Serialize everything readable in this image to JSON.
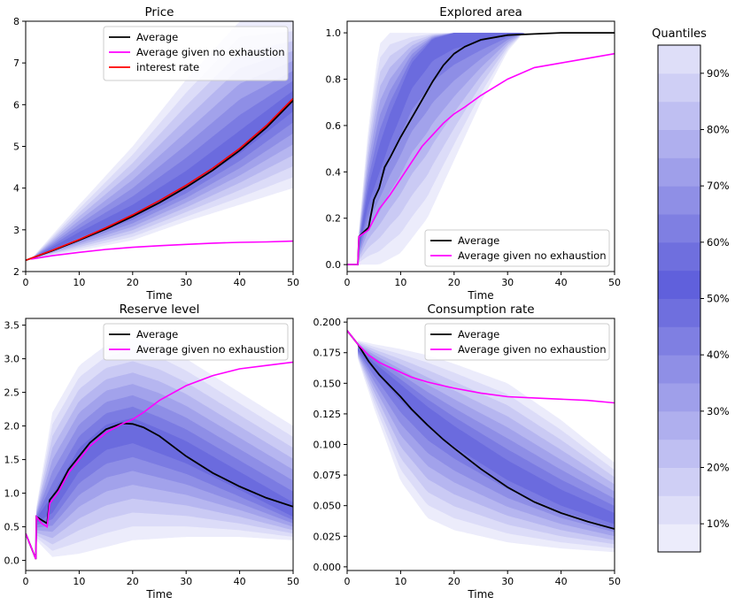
{
  "chart_data": [
    {
      "type": "area",
      "title": "Price",
      "xlabel": "Time",
      "ylabel": "",
      "xlim": [
        0,
        50
      ],
      "ylim": [
        2,
        8
      ],
      "xticks": [
        "0",
        "10",
        "20",
        "30",
        "40",
        "50"
      ],
      "yticks": [
        "2",
        "3",
        "4",
        "5",
        "6",
        "7",
        "8"
      ],
      "legend_position": "top-right",
      "legend": [
        "Average",
        "Average given no exhaustion",
        "interest rate"
      ],
      "band_center": {
        "x": [
          1,
          10,
          20,
          30,
          40,
          50
        ],
        "y": [
          2.3,
          2.85,
          3.4,
          4.1,
          5.0,
          6.1
        ]
      },
      "band_upper": {
        "x": [
          1,
          10,
          20,
          30,
          40,
          50
        ],
        "y": [
          2.3,
          3.6,
          5.0,
          6.6,
          8.0,
          8.0
        ]
      },
      "band_lower": {
        "x": [
          1,
          10,
          20,
          30,
          40,
          50
        ],
        "y": [
          2.3,
          2.5,
          2.75,
          3.2,
          3.6,
          4.0
        ]
      },
      "series": [
        {
          "name": "Average",
          "color": "#000000",
          "x": [
            0,
            5,
            10,
            15,
            20,
            25,
            30,
            35,
            40,
            45,
            50
          ],
          "y": [
            2.27,
            2.5,
            2.75,
            3.02,
            3.32,
            3.65,
            4.02,
            4.43,
            4.9,
            5.45,
            6.1
          ]
        },
        {
          "name": "Average given no exhaustion",
          "color": "#ff00ff",
          "x": [
            1,
            5,
            10,
            15,
            20,
            25,
            30,
            35,
            40,
            45,
            50
          ],
          "y": [
            2.3,
            2.38,
            2.46,
            2.53,
            2.58,
            2.62,
            2.65,
            2.68,
            2.7,
            2.71,
            2.73
          ]
        },
        {
          "name": "interest rate",
          "color": "#ff0000",
          "x": [
            0,
            5,
            10,
            15,
            20,
            25,
            30,
            35,
            40,
            45,
            50
          ],
          "y": [
            2.27,
            2.51,
            2.77,
            3.05,
            3.36,
            3.7,
            4.07,
            4.48,
            4.95,
            5.5,
            6.15
          ]
        }
      ]
    },
    {
      "type": "area",
      "title": "Explored area",
      "xlabel": "Time",
      "ylabel": "",
      "xlim": [
        0,
        50
      ],
      "ylim": [
        -0.03,
        1.05
      ],
      "xticks": [
        "0",
        "10",
        "20",
        "30",
        "40",
        "50"
      ],
      "yticks": [
        "0.0",
        "0.2",
        "0.4",
        "0.6",
        "0.8",
        "1.0"
      ],
      "legend_position": "bottom-right",
      "legend": [
        "Average",
        "Average given no exhaustion"
      ],
      "band_center": {
        "x": [
          2,
          4,
          8,
          12,
          16,
          20,
          25,
          28
        ],
        "y": [
          0.05,
          0.3,
          0.6,
          0.85,
          0.97,
          1.0,
          1.0,
          1.0
        ]
      },
      "band_upper": {
        "x": [
          2,
          4,
          6,
          8,
          10,
          50
        ],
        "y": [
          0.1,
          0.6,
          0.95,
          1.0,
          1.0,
          1.0
        ]
      },
      "band_lower": {
        "x": [
          2,
          6,
          10,
          15,
          20,
          25,
          30,
          33
        ],
        "y": [
          0.0,
          0.0,
          0.05,
          0.2,
          0.45,
          0.7,
          0.92,
          1.0
        ]
      },
      "series": [
        {
          "name": "Average",
          "color": "#000000",
          "x": [
            0,
            2,
            2.2,
            4,
            5,
            6,
            7,
            8,
            10,
            12,
            14,
            16,
            18,
            20,
            22,
            25,
            30,
            35,
            40,
            45,
            50
          ],
          "y": [
            0,
            0,
            0.12,
            0.16,
            0.28,
            0.33,
            0.42,
            0.46,
            0.55,
            0.63,
            0.71,
            0.79,
            0.86,
            0.91,
            0.94,
            0.97,
            0.99,
            0.995,
            1.0,
            1.0,
            1.0
          ]
        },
        {
          "name": "Average given no exhaustion",
          "color": "#ff00ff",
          "x": [
            0,
            2,
            2.2,
            4,
            6,
            8,
            10,
            12,
            14,
            16,
            18,
            20,
            22,
            25,
            30,
            35,
            40,
            45,
            50
          ],
          "y": [
            0,
            0,
            0.12,
            0.15,
            0.24,
            0.3,
            0.37,
            0.44,
            0.51,
            0.56,
            0.61,
            0.65,
            0.68,
            0.73,
            0.8,
            0.85,
            0.87,
            0.89,
            0.91
          ]
        }
      ]
    },
    {
      "type": "area",
      "title": "Reserve level",
      "xlabel": "Time",
      "ylabel": "",
      "xlim": [
        0,
        50
      ],
      "ylim": [
        -0.15,
        3.6
      ],
      "xticks": [
        "0",
        "10",
        "20",
        "30",
        "40",
        "50"
      ],
      "yticks": [
        "0.0",
        "0.5",
        "1.0",
        "1.5",
        "2.0",
        "2.5",
        "3.0",
        "3.5"
      ],
      "legend_position": "top-right",
      "legend": [
        "Average",
        "Average given no exhaustion"
      ],
      "band_center": {
        "x": [
          2,
          5,
          10,
          15,
          20,
          30,
          40,
          50
        ],
        "y": [
          0.6,
          0.8,
          1.5,
          1.85,
          1.95,
          1.6,
          1.15,
          0.7
        ]
      },
      "band_upper": {
        "x": [
          2,
          5,
          10,
          15,
          20,
          25,
          30,
          40,
          50
        ],
        "y": [
          0.8,
          2.2,
          2.9,
          3.2,
          3.3,
          3.2,
          3.0,
          2.5,
          2.0
        ]
      },
      "band_lower": {
        "x": [
          2,
          5,
          10,
          15,
          20,
          30,
          40,
          50
        ],
        "y": [
          0.3,
          0.05,
          0.1,
          0.2,
          0.3,
          0.35,
          0.35,
          0.3
        ]
      },
      "series": [
        {
          "name": "Average",
          "color": "#000000",
          "x": [
            0,
            1.9,
            2,
            3,
            4,
            4.5,
            5,
            6,
            7,
            8,
            10,
            12,
            15,
            18,
            20,
            22,
            25,
            30,
            35,
            40,
            45,
            50
          ],
          "y": [
            0.4,
            0.02,
            0.65,
            0.6,
            0.55,
            0.9,
            0.95,
            1.05,
            1.2,
            1.35,
            1.55,
            1.75,
            1.95,
            2.04,
            2.03,
            1.98,
            1.85,
            1.55,
            1.3,
            1.1,
            0.93,
            0.8
          ]
        },
        {
          "name": "Average given no exhaustion",
          "color": "#ff00ff",
          "x": [
            0,
            1.9,
            2,
            3,
            4,
            4.5,
            5,
            6,
            7,
            8,
            10,
            12,
            15,
            18,
            20,
            22,
            25,
            30,
            35,
            40,
            45,
            50
          ],
          "y": [
            0.4,
            0.02,
            0.65,
            0.55,
            0.5,
            0.85,
            0.9,
            1.0,
            1.15,
            1.3,
            1.5,
            1.7,
            1.9,
            2.03,
            2.1,
            2.2,
            2.38,
            2.6,
            2.75,
            2.85,
            2.9,
            2.95
          ]
        }
      ]
    },
    {
      "type": "area",
      "title": "Consumption rate",
      "xlabel": "Time",
      "ylabel": "",
      "xlim": [
        0,
        50
      ],
      "ylim": [
        -0.003,
        0.203
      ],
      "xticks": [
        "0",
        "10",
        "20",
        "30",
        "40",
        "50"
      ],
      "yticks": [
        "0.000",
        "0.025",
        "0.050",
        "0.075",
        "0.100",
        "0.125",
        "0.150",
        "0.175",
        "0.200"
      ],
      "legend_position": "top-right",
      "legend": [
        "Average",
        "Average given no exhaustion"
      ],
      "band_center": {
        "x": [
          2,
          5,
          10,
          15,
          20,
          30,
          40,
          50
        ],
        "y": [
          0.178,
          0.165,
          0.145,
          0.125,
          0.108,
          0.078,
          0.055,
          0.038
        ]
      },
      "band_upper": {
        "x": [
          2,
          5,
          10,
          15,
          20,
          25,
          30,
          40,
          50
        ],
        "y": [
          0.185,
          0.182,
          0.178,
          0.173,
          0.166,
          0.158,
          0.15,
          0.12,
          0.085
        ]
      },
      "band_lower": {
        "x": [
          2,
          5,
          10,
          15,
          20,
          30,
          40,
          50
        ],
        "y": [
          0.17,
          0.13,
          0.07,
          0.04,
          0.03,
          0.02,
          0.015,
          0.012
        ]
      },
      "series": [
        {
          "name": "Average",
          "color": "#000000",
          "x": [
            0,
            2,
            4,
            6,
            8,
            10,
            12,
            15,
            18,
            20,
            25,
            30,
            35,
            40,
            45,
            50
          ],
          "y": [
            0.193,
            0.182,
            0.168,
            0.157,
            0.148,
            0.139,
            0.129,
            0.116,
            0.104,
            0.097,
            0.08,
            0.065,
            0.053,
            0.044,
            0.037,
            0.031
          ]
        },
        {
          "name": "Average given no exhaustion",
          "color": "#ff00ff",
          "x": [
            0,
            2,
            4,
            6,
            8,
            10,
            12,
            15,
            18,
            20,
            25,
            30,
            35,
            40,
            45,
            50
          ],
          "y": [
            0.193,
            0.182,
            0.173,
            0.167,
            0.163,
            0.159,
            0.155,
            0.151,
            0.148,
            0.146,
            0.142,
            0.139,
            0.138,
            0.137,
            0.136,
            0.134
          ]
        }
      ]
    }
  ],
  "colorbar": {
    "title": "Quantiles",
    "ticks": [
      "10%",
      "20%",
      "30%",
      "40%",
      "50%",
      "60%",
      "70%",
      "80%",
      "90%"
    ],
    "tick_values": [
      0.1,
      0.2,
      0.3,
      0.4,
      0.5,
      0.6,
      0.7,
      0.8,
      0.9
    ],
    "range": [
      0.05,
      0.95
    ],
    "colors": [
      "#ececfb",
      "#dedef8",
      "#cfcff5",
      "#bfbff2",
      "#afafee",
      "#9f9fea",
      "#8f8fe6",
      "#7f7fe2",
      "#6f6fde",
      "#6060dc",
      "#6f6fde",
      "#7f7fe2",
      "#8f8fe6",
      "#9f9fea",
      "#afafee",
      "#bfbff2",
      "#cfcff5",
      "#dedef8"
    ]
  },
  "band_colors": [
    "#ececfb",
    "#dcdcf8",
    "#cacaf4",
    "#b6b6f0",
    "#a2a2eb",
    "#8e8ee6",
    "#7b7be2",
    "#6b6bde"
  ]
}
